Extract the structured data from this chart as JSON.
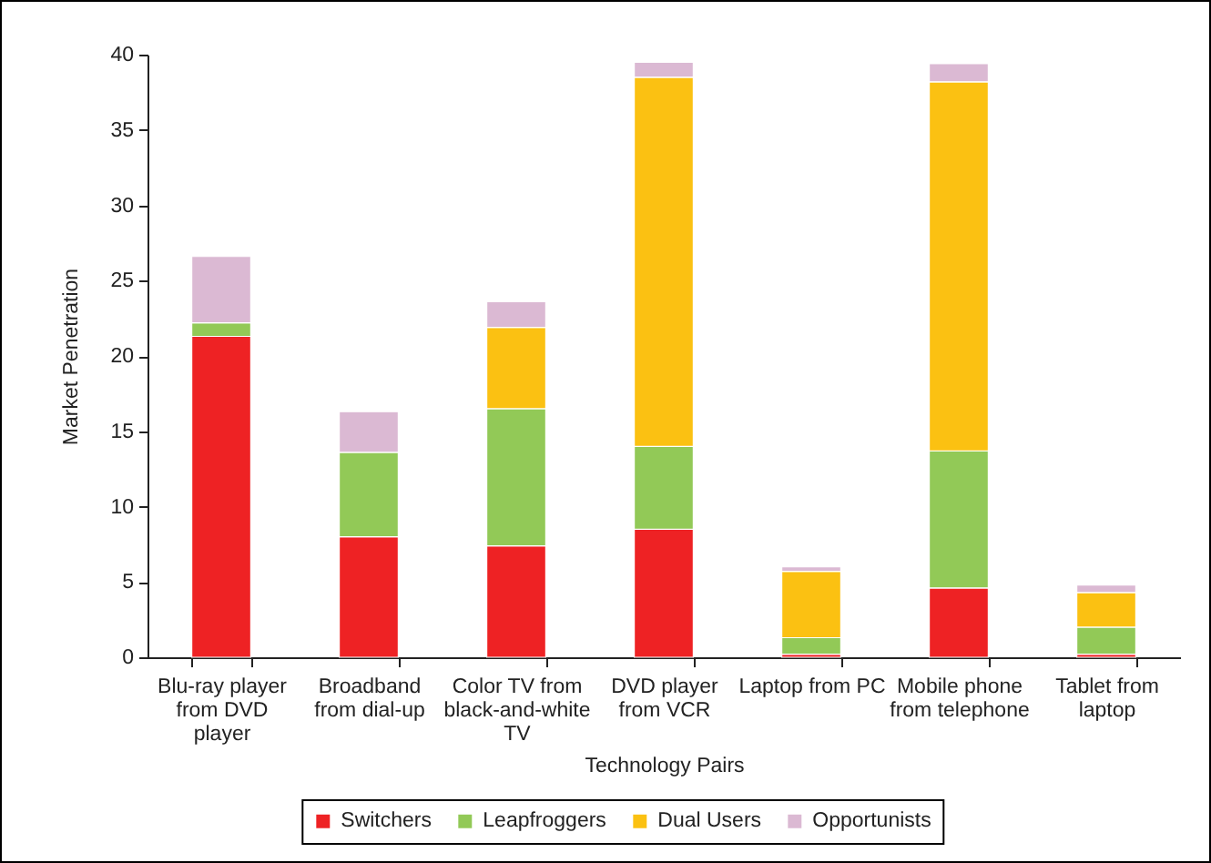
{
  "chart_data": {
    "type": "bar",
    "stacked": true,
    "xlabel": "Technology Pairs",
    "ylabel": "Market Penetration",
    "categories": [
      "Blu-ray player from DVD player",
      "Broadband from dial-up",
      "Color TV from black-and-white TV",
      "DVD player from VCR",
      "Laptop from PC",
      "Mobile phone from telephone",
      "Tablet from laptop"
    ],
    "series": [
      {
        "name": "Switchers",
        "color": "#ee2224",
        "values": [
          21.3,
          8.0,
          7.4,
          8.5,
          0.2,
          4.6,
          0.2
        ]
      },
      {
        "name": "Leapfroggers",
        "color": "#92c957",
        "values": [
          0.9,
          5.6,
          9.1,
          5.5,
          1.1,
          9.1,
          1.8
        ]
      },
      {
        "name": "Dual Users",
        "color": "#fbc112",
        "values": [
          null,
          null,
          5.4,
          24.5,
          4.4,
          24.5,
          2.3
        ]
      },
      {
        "name": "Opportunists",
        "color": "#dbb9d3",
        "values": [
          4.4,
          2.7,
          1.7,
          1.0,
          0.3,
          1.2,
          0.5
        ]
      }
    ],
    "ylim": [
      0,
      40
    ],
    "yticks": [
      0,
      5,
      10,
      15,
      20,
      25,
      30,
      35,
      40
    ],
    "grid": false,
    "legend": "bottom"
  }
}
